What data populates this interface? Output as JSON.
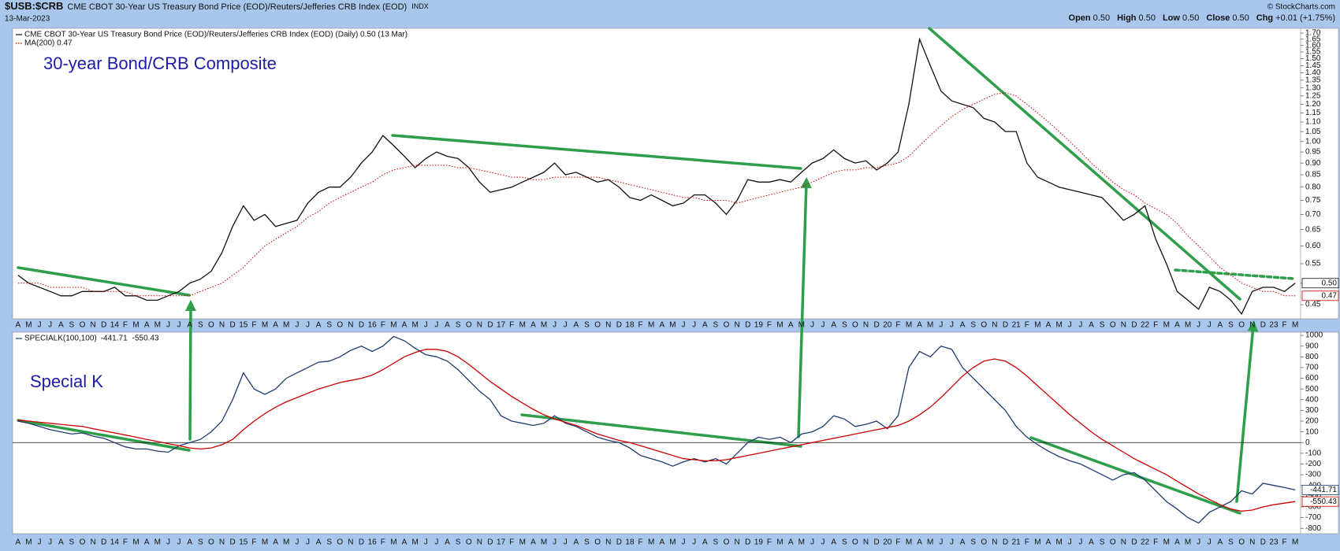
{
  "header": {
    "symbol": "$USB:$CRB",
    "description": "CME CBOT 30-Year US Treasury Bond Price (EOD)/Reuters/Jefferies CRB Index (EOD)",
    "exchange": "INDX",
    "date": "13-Mar-2023",
    "copyright": "© StockCharts.com",
    "quote": [
      {
        "label": "Open",
        "value": "0.50"
      },
      {
        "label": "High",
        "value": "0.50"
      },
      {
        "label": "Low",
        "value": "0.50"
      },
      {
        "label": "Close",
        "value": "0.50"
      },
      {
        "label": "Chg",
        "value": "+0.01 (+1.75%)"
      }
    ]
  },
  "chart_data": [
    {
      "type": "line",
      "annotation": "30-year Bond/CRB Composite",
      "log": true,
      "grid": false,
      "categories": [
        "A",
        "M",
        "J",
        "J",
        "A",
        "S",
        "O",
        "N",
        "D",
        "14",
        "F",
        "M",
        "A",
        "M",
        "J",
        "J",
        "A",
        "S",
        "O",
        "N",
        "D",
        "15",
        "F",
        "M",
        "A",
        "M",
        "J",
        "J",
        "A",
        "S",
        "O",
        "N",
        "D",
        "16",
        "F",
        "M",
        "A",
        "M",
        "J",
        "J",
        "A",
        "S",
        "O",
        "N",
        "D",
        "17",
        "F",
        "M",
        "A",
        "M",
        "J",
        "J",
        "A",
        "S",
        "O",
        "N",
        "D",
        "18",
        "F",
        "M",
        "A",
        "M",
        "J",
        "J",
        "A",
        "S",
        "O",
        "N",
        "D",
        "19",
        "F",
        "M",
        "A",
        "M",
        "J",
        "J",
        "A",
        "S",
        "O",
        "N",
        "D",
        "20",
        "F",
        "M",
        "A",
        "M",
        "J",
        "J",
        "A",
        "S",
        "O",
        "N",
        "D",
        "21",
        "F",
        "M",
        "A",
        "M",
        "J",
        "J",
        "A",
        "S",
        "O",
        "N",
        "D",
        "22",
        "F",
        "M",
        "A",
        "M",
        "J",
        "J",
        "A",
        "S",
        "O",
        "N",
        "D",
        "23",
        "F",
        "M"
      ],
      "ylim": [
        0.42,
        1.74
      ],
      "yticks": [
        0.45,
        {
          "value": 0.5,
          "label": "0.50"
        },
        0.55,
        {
          "value": 0.6,
          "label": "0.60"
        },
        0.65,
        {
          "value": 0.7,
          "label": "0.70"
        },
        0.75,
        {
          "value": 0.8,
          "label": "0.80"
        },
        0.85,
        {
          "value": 0.9,
          "label": "0.90"
        },
        0.95,
        {
          "value": 1,
          "label": "1.00"
        },
        1.05,
        {
          "value": 1.1,
          "label": "1.10"
        },
        1.15,
        {
          "value": 1.2,
          "label": "1.20"
        },
        1.25,
        {
          "value": 1.3,
          "label": "1.30"
        },
        1.35,
        {
          "value": 1.4,
          "label": "1.40"
        },
        1.45,
        {
          "value": 1.5,
          "label": "1.50"
        },
        1.55,
        {
          "value": 1.6,
          "label": "1.60"
        },
        1.65,
        {
          "value": 1.7,
          "label": "1.70"
        }
      ],
      "series": [
        {
          "name": "CME CBOT 30-Year US Treasury Bond Price (EOD)/Reuters/Jefferies CRB Index (EOD) (Daily) 0.50 (13 Mar)",
          "color": "#111111",
          "last_label": "0.50",
          "values": [
            0.52,
            0.5,
            0.49,
            0.48,
            0.47,
            0.47,
            0.48,
            0.48,
            0.48,
            0.49,
            0.47,
            0.47,
            0.46,
            0.46,
            0.47,
            0.48,
            0.5,
            0.51,
            0.53,
            0.58,
            0.66,
            0.73,
            0.68,
            0.7,
            0.66,
            0.67,
            0.68,
            0.74,
            0.78,
            0.8,
            0.8,
            0.84,
            0.9,
            0.95,
            1.03,
            0.98,
            0.93,
            0.88,
            0.92,
            0.95,
            0.93,
            0.92,
            0.88,
            0.82,
            0.78,
            0.79,
            0.8,
            0.82,
            0.84,
            0.86,
            0.9,
            0.85,
            0.86,
            0.84,
            0.82,
            0.83,
            0.8,
            0.76,
            0.75,
            0.77,
            0.75,
            0.73,
            0.74,
            0.77,
            0.77,
            0.74,
            0.7,
            0.75,
            0.83,
            0.82,
            0.82,
            0.83,
            0.82,
            0.86,
            0.9,
            0.92,
            0.96,
            0.92,
            0.9,
            0.91,
            0.87,
            0.9,
            0.95,
            1.2,
            1.65,
            1.45,
            1.28,
            1.22,
            1.2,
            1.18,
            1.12,
            1.1,
            1.05,
            1.05,
            0.9,
            0.84,
            0.82,
            0.8,
            0.79,
            0.78,
            0.77,
            0.76,
            0.72,
            0.68,
            0.7,
            0.73,
            0.62,
            0.55,
            0.48,
            0.46,
            0.44,
            0.49,
            0.48,
            0.46,
            0.43,
            0.48,
            0.49,
            0.49,
            0.48,
            0.5
          ]
        },
        {
          "name": "MA(200) 0.47",
          "color": "#cc0000",
          "style": "dotted",
          "last_label": "0.47",
          "values": [
            0.5,
            0.5,
            0.5,
            0.49,
            0.49,
            0.49,
            0.49,
            0.48,
            0.48,
            0.48,
            0.48,
            0.47,
            0.47,
            0.47,
            0.47,
            0.47,
            0.47,
            0.48,
            0.49,
            0.5,
            0.52,
            0.54,
            0.57,
            0.6,
            0.62,
            0.64,
            0.66,
            0.69,
            0.71,
            0.74,
            0.76,
            0.78,
            0.8,
            0.82,
            0.85,
            0.87,
            0.88,
            0.89,
            0.89,
            0.89,
            0.89,
            0.88,
            0.88,
            0.87,
            0.86,
            0.85,
            0.84,
            0.84,
            0.83,
            0.83,
            0.84,
            0.84,
            0.84,
            0.84,
            0.84,
            0.83,
            0.82,
            0.81,
            0.8,
            0.79,
            0.78,
            0.77,
            0.76,
            0.76,
            0.75,
            0.75,
            0.75,
            0.74,
            0.75,
            0.76,
            0.77,
            0.78,
            0.79,
            0.8,
            0.82,
            0.84,
            0.86,
            0.87,
            0.87,
            0.88,
            0.88,
            0.89,
            0.9,
            0.93,
            0.98,
            1.03,
            1.08,
            1.13,
            1.17,
            1.2,
            1.23,
            1.26,
            1.27,
            1.25,
            1.2,
            1.15,
            1.1,
            1.05,
            1.0,
            0.95,
            0.9,
            0.86,
            0.82,
            0.79,
            0.77,
            0.74,
            0.72,
            0.7,
            0.67,
            0.63,
            0.6,
            0.57,
            0.54,
            0.52,
            0.5,
            0.49,
            0.48,
            0.48,
            0.47,
            0.47
          ]
        }
      ]
    },
    {
      "type": "line",
      "annotation": "Special K",
      "grid": false,
      "zero_line": true,
      "legend_values": true,
      "categories": [
        "A",
        "M",
        "J",
        "J",
        "A",
        "S",
        "O",
        "N",
        "D",
        "14",
        "F",
        "M",
        "A",
        "M",
        "J",
        "J",
        "A",
        "S",
        "O",
        "N",
        "D",
        "15",
        "F",
        "M",
        "A",
        "M",
        "J",
        "J",
        "A",
        "S",
        "O",
        "N",
        "D",
        "16",
        "F",
        "M",
        "A",
        "M",
        "J",
        "J",
        "A",
        "S",
        "O",
        "N",
        "D",
        "17",
        "F",
        "M",
        "A",
        "M",
        "J",
        "J",
        "A",
        "S",
        "O",
        "N",
        "D",
        "18",
        "F",
        "M",
        "A",
        "M",
        "J",
        "J",
        "A",
        "S",
        "O",
        "N",
        "D",
        "19",
        "F",
        "M",
        "A",
        "M",
        "J",
        "J",
        "A",
        "S",
        "O",
        "N",
        "D",
        "20",
        "F",
        "M",
        "A",
        "M",
        "J",
        "J",
        "A",
        "S",
        "O",
        "N",
        "D",
        "21",
        "F",
        "M",
        "A",
        "M",
        "J",
        "J",
        "A",
        "S",
        "O",
        "N",
        "D",
        "22",
        "F",
        "M",
        "A",
        "M",
        "J",
        "J",
        "A",
        "S",
        "O",
        "N",
        "D",
        "23",
        "F",
        "M"
      ],
      "ylim": [
        -850,
        1030
      ],
      "yticks": [
        -800,
        -700,
        -600,
        -500,
        -400,
        -300,
        -200,
        -100,
        0,
        100,
        200,
        300,
        400,
        500,
        600,
        700,
        800,
        900,
        1000
      ],
      "series": [
        {
          "name": "SPECIALK(100,100)",
          "color": "#1f3a6e",
          "values": [
            200,
            180,
            150,
            120,
            100,
            80,
            90,
            60,
            40,
            0,
            -40,
            -60,
            -60,
            -80,
            -90,
            -30,
            0,
            30,
            100,
            200,
            400,
            650,
            500,
            450,
            500,
            600,
            650,
            700,
            750,
            760,
            800,
            860,
            900,
            850,
            900,
            990,
            950,
            880,
            820,
            800,
            760,
            680,
            580,
            480,
            400,
            250,
            200,
            180,
            160,
            180,
            250,
            180,
            150,
            100,
            50,
            20,
            0,
            -50,
            -120,
            -150,
            -180,
            -220,
            -180,
            -150,
            -180,
            -150,
            -200,
            -100,
            0,
            50,
            30,
            50,
            0,
            80,
            100,
            150,
            250,
            220,
            150,
            170,
            200,
            130,
            250,
            700,
            850,
            800,
            900,
            870,
            700,
            600,
            500,
            400,
            300,
            150,
            50,
            -20,
            -80,
            -130,
            -170,
            -200,
            -250,
            -300,
            -350,
            -300,
            -280,
            -350,
            -450,
            -550,
            -620,
            -700,
            -750,
            -650,
            -600,
            -550,
            -450,
            -480,
            -380,
            -400,
            -420,
            -441.71
          ]
        },
        {
          "color": "#cc0000",
          "values": [
            210,
            200,
            190,
            180,
            170,
            160,
            150,
            130,
            110,
            90,
            70,
            50,
            30,
            10,
            -10,
            -30,
            -50,
            -60,
            -50,
            -20,
            30,
            120,
            200,
            270,
            330,
            380,
            420,
            460,
            500,
            530,
            560,
            580,
            600,
            630,
            680,
            740,
            800,
            840,
            870,
            870,
            850,
            800,
            730,
            650,
            570,
            500,
            430,
            370,
            310,
            260,
            220,
            190,
            160,
            120,
            80,
            50,
            20,
            0,
            -30,
            -60,
            -90,
            -120,
            -150,
            -160,
            -170,
            -170,
            -160,
            -140,
            -120,
            -100,
            -80,
            -60,
            -40,
            -20,
            0,
            20,
            40,
            60,
            80,
            100,
            120,
            140,
            160,
            200,
            260,
            330,
            420,
            520,
            620,
            700,
            760,
            780,
            760,
            700,
            620,
            530,
            440,
            350,
            260,
            180,
            100,
            30,
            -30,
            -90,
            -150,
            -200,
            -250,
            -300,
            -360,
            -420,
            -480,
            -530,
            -580,
            -620,
            -640,
            -630,
            -600,
            -580,
            -565,
            -550.43
          ]
        }
      ]
    }
  ]
}
